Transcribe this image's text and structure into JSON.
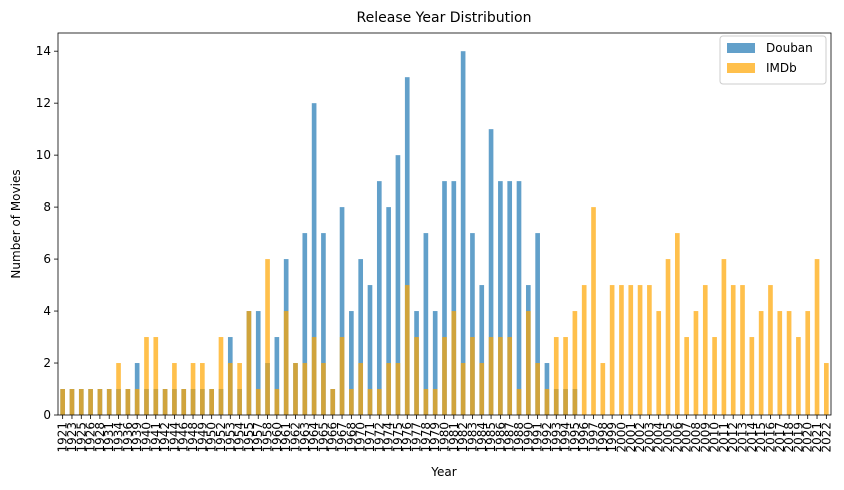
{
  "chart_data": {
    "type": "bar",
    "title": "Release Year Distribution",
    "xlabel": "Year",
    "ylabel": "Number of Movies",
    "ylim": [
      0,
      14.7
    ],
    "yticks": [
      0,
      2,
      4,
      6,
      8,
      10,
      12,
      14
    ],
    "legend_position": "top-right",
    "grid": false,
    "categories": [
      "1921",
      "1923",
      "1925",
      "1926",
      "1928",
      "1931",
      "1934",
      "1936",
      "1939",
      "1940",
      "1941",
      "1942",
      "1944",
      "1946",
      "1948",
      "1949",
      "1950",
      "1952",
      "1953",
      "1954",
      "1955",
      "1957",
      "1958",
      "1960",
      "1961",
      "1962",
      "1963",
      "1964",
      "1965",
      "1966",
      "1967",
      "1968",
      "1970",
      "1971",
      "1972",
      "1974",
      "1975",
      "1976",
      "1977",
      "1978",
      "1979",
      "1980",
      "1981",
      "1982",
      "1983",
      "1984",
      "1985",
      "1986",
      "1987",
      "1988",
      "1990",
      "1991",
      "1992",
      "1993",
      "1994",
      "1995",
      "1996",
      "1997",
      "1998",
      "1999",
      "2000",
      "2001",
      "2002",
      "2003",
      "2004",
      "2005",
      "2006",
      "2007",
      "2008",
      "2009",
      "2010",
      "2011",
      "2012",
      "2013",
      "2014",
      "2015",
      "2016",
      "2017",
      "2018",
      "2019",
      "2020",
      "2021",
      "2022"
    ],
    "series": [
      {
        "name": "Douban",
        "color": "#1f77b4",
        "alpha": 0.7,
        "values": [
          1,
          1,
          1,
          1,
          1,
          1,
          1,
          1,
          2,
          1,
          1,
          1,
          1,
          1,
          1,
          1,
          1,
          1,
          3,
          1,
          4,
          4,
          2,
          3,
          6,
          2,
          7,
          12,
          7,
          1,
          8,
          4,
          6,
          5,
          9,
          8,
          10,
          13,
          4,
          7,
          4,
          9,
          9,
          14,
          7,
          5,
          11,
          9,
          9,
          9,
          5,
          7,
          2,
          1,
          1,
          1,
          0,
          0,
          0,
          0,
          0,
          0,
          0,
          0,
          0,
          0,
          0,
          0,
          0,
          0,
          0,
          0,
          0,
          0,
          0,
          0,
          0,
          0,
          0,
          0,
          0,
          0,
          0
        ]
      },
      {
        "name": "IMDb",
        "color": "#ffa500",
        "alpha": 0.7,
        "values": [
          1,
          1,
          1,
          1,
          1,
          1,
          2,
          1,
          1,
          3,
          3,
          1,
          2,
          1,
          2,
          2,
          1,
          3,
          2,
          2,
          4,
          1,
          6,
          1,
          4,
          2,
          2,
          3,
          2,
          1,
          3,
          1,
          2,
          1,
          1,
          2,
          2,
          5,
          3,
          1,
          1,
          3,
          4,
          2,
          3,
          2,
          3,
          3,
          3,
          1,
          4,
          2,
          1,
          3,
          3,
          4,
          5,
          8,
          2,
          5,
          5,
          5,
          5,
          5,
          4,
          6,
          7,
          3,
          4,
          5,
          3,
          6,
          5,
          5,
          3,
          4,
          5,
          4,
          4,
          3,
          4,
          6,
          2
        ]
      }
    ]
  }
}
